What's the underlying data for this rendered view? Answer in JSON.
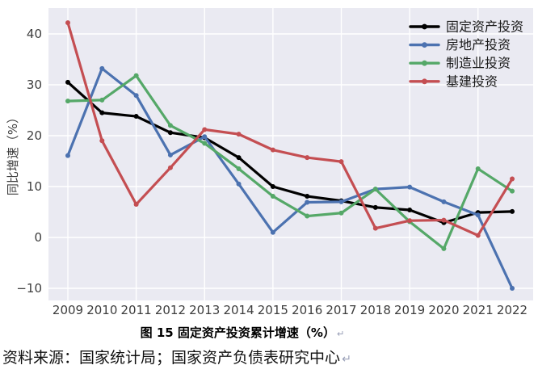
{
  "figure": {
    "caption": "图 15 固定资产投资累计增速（%）",
    "caption_return_mark": "↵",
    "source": "资料来源：国家统计局；国家资产负债表研究中心",
    "source_return_mark": "↵"
  },
  "chart_data": {
    "type": "line",
    "title": "",
    "xlabel": "",
    "ylabel": "同比增速（%）",
    "x": [
      2009,
      2010,
      2011,
      2012,
      2013,
      2014,
      2015,
      2016,
      2017,
      2018,
      2019,
      2020,
      2021,
      2022
    ],
    "series": [
      {
        "id": "fixed-asset-investment",
        "name": "固定资产投资",
        "color": "#000000",
        "values": [
          30.5,
          24.5,
          23.8,
          20.6,
          19.6,
          15.7,
          10.0,
          8.1,
          7.2,
          5.9,
          5.4,
          2.9,
          4.9,
          5.1
        ]
      },
      {
        "id": "real-estate-investment",
        "name": "房地产投资",
        "color": "#4C72B0",
        "values": [
          16.1,
          33.2,
          27.9,
          16.2,
          19.8,
          10.5,
          1.0,
          6.9,
          7.0,
          9.5,
          9.9,
          7.0,
          4.4,
          -10.0
        ]
      },
      {
        "id": "manufacturing-investment",
        "name": "制造业投资",
        "color": "#55A868",
        "values": [
          26.8,
          27.0,
          31.8,
          22.0,
          18.5,
          13.5,
          8.1,
          4.2,
          4.8,
          9.5,
          3.1,
          -2.2,
          13.5,
          9.1
        ]
      },
      {
        "id": "infrastructure-investment",
        "name": "基建投资",
        "color": "#C44E52",
        "values": [
          42.2,
          19.0,
          6.5,
          13.7,
          21.2,
          20.3,
          17.2,
          15.7,
          14.9,
          1.8,
          3.3,
          3.4,
          0.4,
          11.5
        ]
      }
    ],
    "yticks": [
      40,
      30,
      20,
      10,
      0,
      -10
    ],
    "ylim": [
      -12.4,
      45.1
    ],
    "grid": true,
    "grid_x_years": [
      2009,
      2011,
      2013,
      2015,
      2017,
      2019,
      2021
    ],
    "legend_position": "upper right",
    "plot_bg": "#EAEAF2",
    "grid_color": "#FFFFFF",
    "tick_color": "#3d3d3d",
    "legend_text_color": "#1a1a1a"
  }
}
